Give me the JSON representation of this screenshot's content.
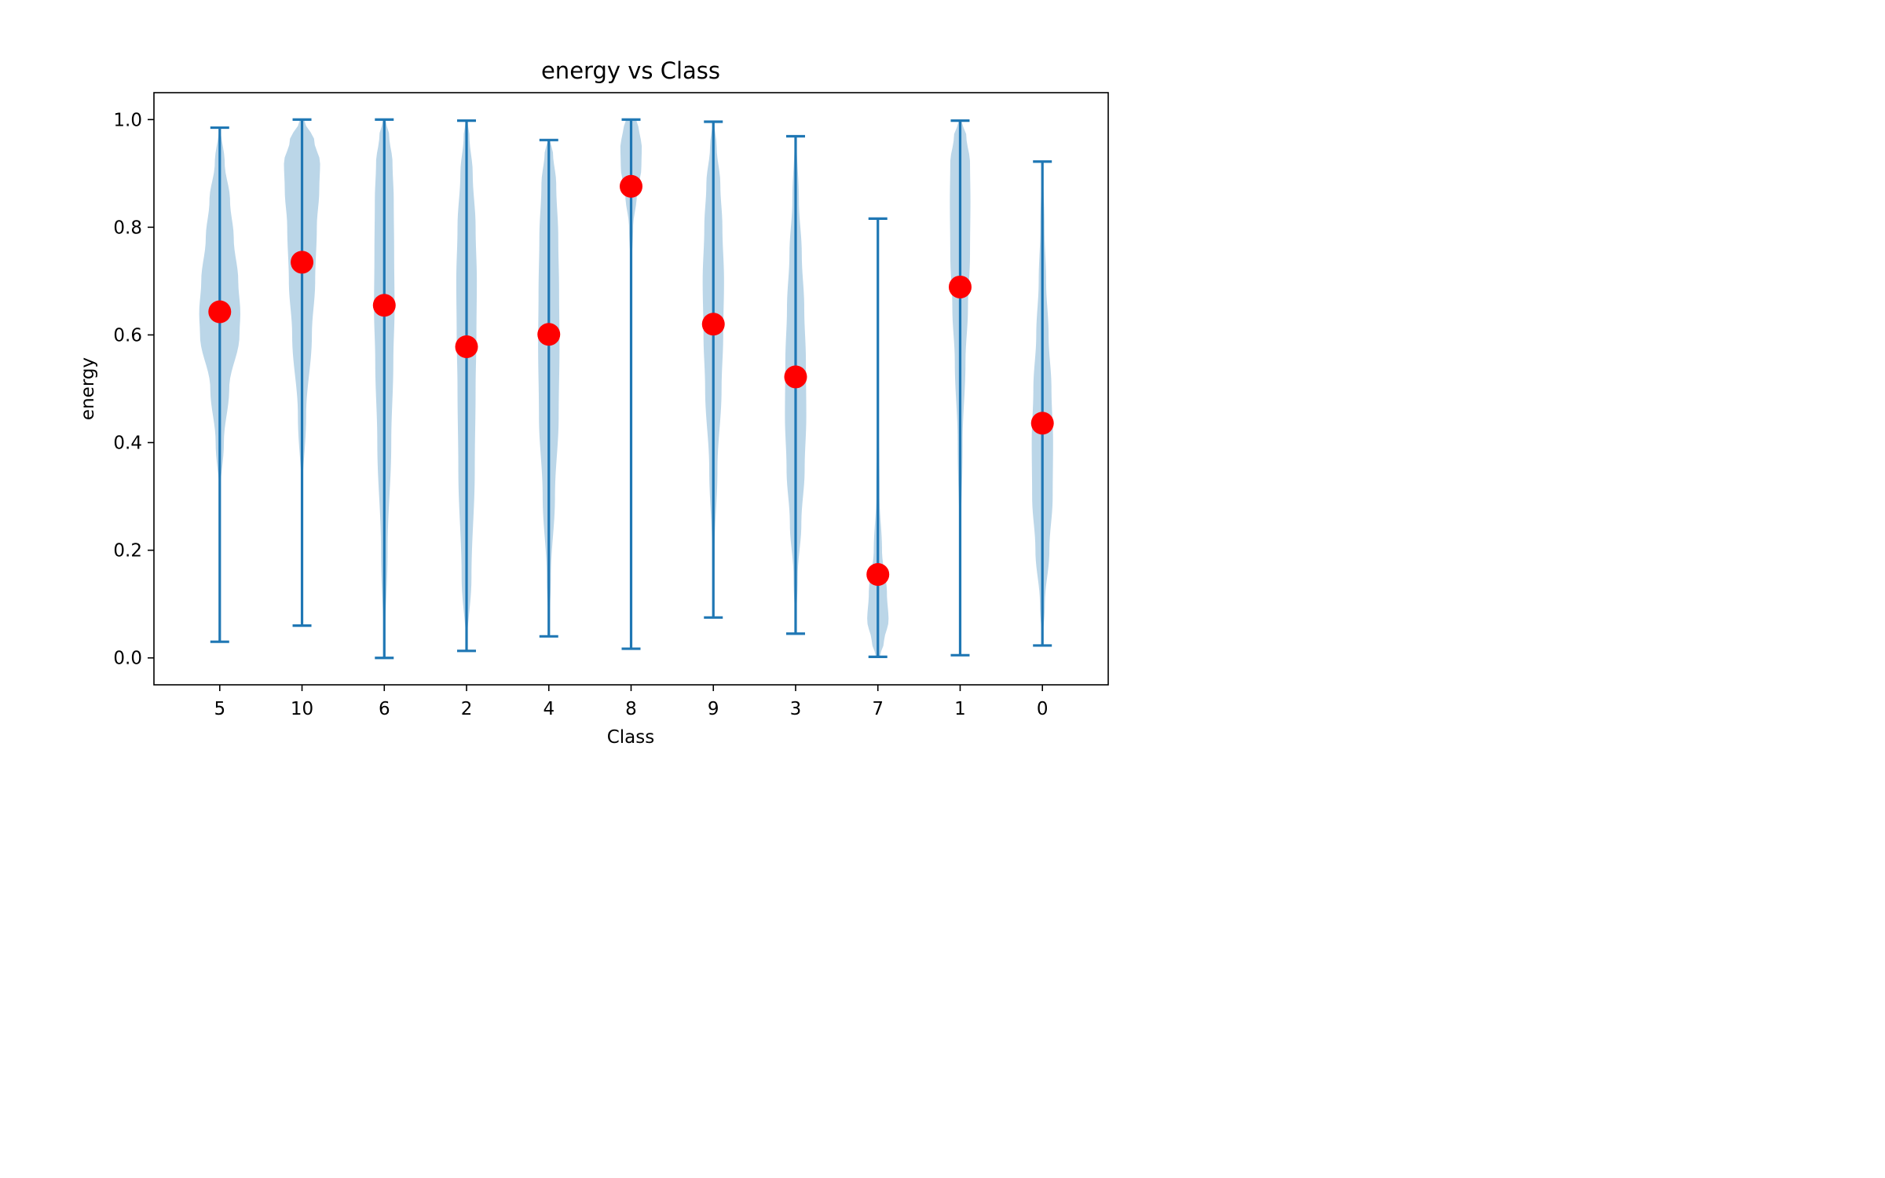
{
  "chart_data": {
    "type": "violin",
    "title": "energy vs Class",
    "xlabel": "Class",
    "ylabel": "energy",
    "ylim": [
      -0.05,
      1.05
    ],
    "yticks": [
      0.0,
      0.2,
      0.4,
      0.6,
      0.8,
      1.0
    ],
    "ytick_labels": [
      "0.0",
      "0.2",
      "0.4",
      "0.6",
      "0.8",
      "1.0"
    ],
    "grid": false,
    "colors": {
      "body": "#1f77b4",
      "body_alpha": 0.3,
      "lines": "#1f77b4",
      "marker": "#ff0000"
    },
    "categories": [
      "5",
      "10",
      "6",
      "2",
      "4",
      "8",
      "9",
      "3",
      "7",
      "1",
      "0"
    ],
    "violins": [
      {
        "category": "5",
        "min": 0.03,
        "max": 0.985,
        "marker": 0.643,
        "profile": [
          [
            0.03,
            0.002
          ],
          [
            0.3,
            0.003
          ],
          [
            0.4,
            0.1
          ],
          [
            0.5,
            0.23
          ],
          [
            0.6,
            0.48
          ],
          [
            0.64,
            0.5
          ],
          [
            0.7,
            0.45
          ],
          [
            0.78,
            0.34
          ],
          [
            0.85,
            0.25
          ],
          [
            0.92,
            0.12
          ],
          [
            0.985,
            0.02
          ]
        ]
      },
      {
        "category": "10",
        "min": 0.06,
        "max": 1.0,
        "marker": 0.735,
        "profile": [
          [
            0.06,
            0.002
          ],
          [
            0.3,
            0.005
          ],
          [
            0.45,
            0.1
          ],
          [
            0.6,
            0.24
          ],
          [
            0.7,
            0.32
          ],
          [
            0.8,
            0.36
          ],
          [
            0.87,
            0.42
          ],
          [
            0.92,
            0.44
          ],
          [
            0.96,
            0.3
          ],
          [
            1.0,
            0.05
          ]
        ]
      },
      {
        "category": "6",
        "min": 0.0,
        "max": 1.0,
        "marker": 0.655,
        "profile": [
          [
            0.0,
            0.002
          ],
          [
            0.2,
            0.08
          ],
          [
            0.4,
            0.17
          ],
          [
            0.55,
            0.22
          ],
          [
            0.65,
            0.25
          ],
          [
            0.75,
            0.24
          ],
          [
            0.85,
            0.23
          ],
          [
            0.92,
            0.2
          ],
          [
            0.97,
            0.12
          ],
          [
            1.0,
            0.03
          ]
        ]
      },
      {
        "category": "2",
        "min": 0.013,
        "max": 0.998,
        "marker": 0.578,
        "profile": [
          [
            0.013,
            0.002
          ],
          [
            0.15,
            0.12
          ],
          [
            0.35,
            0.2
          ],
          [
            0.5,
            0.22
          ],
          [
            0.6,
            0.24
          ],
          [
            0.7,
            0.25
          ],
          [
            0.8,
            0.22
          ],
          [
            0.9,
            0.15
          ],
          [
            0.97,
            0.07
          ],
          [
            0.998,
            0.02
          ]
        ]
      },
      {
        "category": "4",
        "min": 0.04,
        "max": 0.962,
        "marker": 0.601,
        "profile": [
          [
            0.04,
            0.002
          ],
          [
            0.15,
            0.05
          ],
          [
            0.3,
            0.15
          ],
          [
            0.45,
            0.24
          ],
          [
            0.58,
            0.26
          ],
          [
            0.68,
            0.25
          ],
          [
            0.78,
            0.23
          ],
          [
            0.88,
            0.18
          ],
          [
            0.94,
            0.1
          ],
          [
            0.962,
            0.02
          ]
        ]
      },
      {
        "category": "8",
        "min": 0.017,
        "max": 1.0,
        "marker": 0.876,
        "profile": [
          [
            0.017,
            0.002
          ],
          [
            0.6,
            0.002
          ],
          [
            0.72,
            0.01
          ],
          [
            0.8,
            0.05
          ],
          [
            0.86,
            0.14
          ],
          [
            0.91,
            0.25
          ],
          [
            0.95,
            0.26
          ],
          [
            0.98,
            0.2
          ],
          [
            1.0,
            0.12
          ]
        ]
      },
      {
        "category": "9",
        "min": 0.075,
        "max": 0.996,
        "marker": 0.62,
        "profile": [
          [
            0.075,
            0.002
          ],
          [
            0.2,
            0.03
          ],
          [
            0.35,
            0.1
          ],
          [
            0.5,
            0.2
          ],
          [
            0.6,
            0.24
          ],
          [
            0.7,
            0.26
          ],
          [
            0.8,
            0.22
          ],
          [
            0.88,
            0.17
          ],
          [
            0.95,
            0.08
          ],
          [
            0.996,
            0.02
          ]
        ]
      },
      {
        "category": "3",
        "min": 0.045,
        "max": 0.969,
        "marker": 0.522,
        "profile": [
          [
            0.045,
            0.002
          ],
          [
            0.15,
            0.05
          ],
          [
            0.25,
            0.14
          ],
          [
            0.35,
            0.22
          ],
          [
            0.45,
            0.26
          ],
          [
            0.55,
            0.25
          ],
          [
            0.65,
            0.21
          ],
          [
            0.75,
            0.15
          ],
          [
            0.85,
            0.08
          ],
          [
            0.969,
            0.02
          ]
        ]
      },
      {
        "category": "7",
        "min": 0.002,
        "max": 0.816,
        "marker": 0.155,
        "profile": [
          [
            0.002,
            0.05
          ],
          [
            0.03,
            0.15
          ],
          [
            0.07,
            0.26
          ],
          [
            0.12,
            0.22
          ],
          [
            0.2,
            0.1
          ],
          [
            0.3,
            0.04
          ],
          [
            0.5,
            0.01
          ],
          [
            0.816,
            0.002
          ]
        ]
      },
      {
        "category": "1",
        "min": 0.005,
        "max": 0.998,
        "marker": 0.689,
        "profile": [
          [
            0.005,
            0.002
          ],
          [
            0.2,
            0.01
          ],
          [
            0.4,
            0.06
          ],
          [
            0.55,
            0.13
          ],
          [
            0.65,
            0.19
          ],
          [
            0.75,
            0.24
          ],
          [
            0.85,
            0.25
          ],
          [
            0.92,
            0.24
          ],
          [
            0.97,
            0.15
          ],
          [
            0.998,
            0.03
          ]
        ]
      },
      {
        "category": "0",
        "min": 0.023,
        "max": 0.922,
        "marker": 0.436,
        "profile": [
          [
            0.023,
            0.002
          ],
          [
            0.1,
            0.06
          ],
          [
            0.2,
            0.17
          ],
          [
            0.3,
            0.25
          ],
          [
            0.4,
            0.26
          ],
          [
            0.5,
            0.22
          ],
          [
            0.6,
            0.15
          ],
          [
            0.7,
            0.09
          ],
          [
            0.8,
            0.05
          ],
          [
            0.922,
            0.01
          ]
        ]
      }
    ]
  }
}
